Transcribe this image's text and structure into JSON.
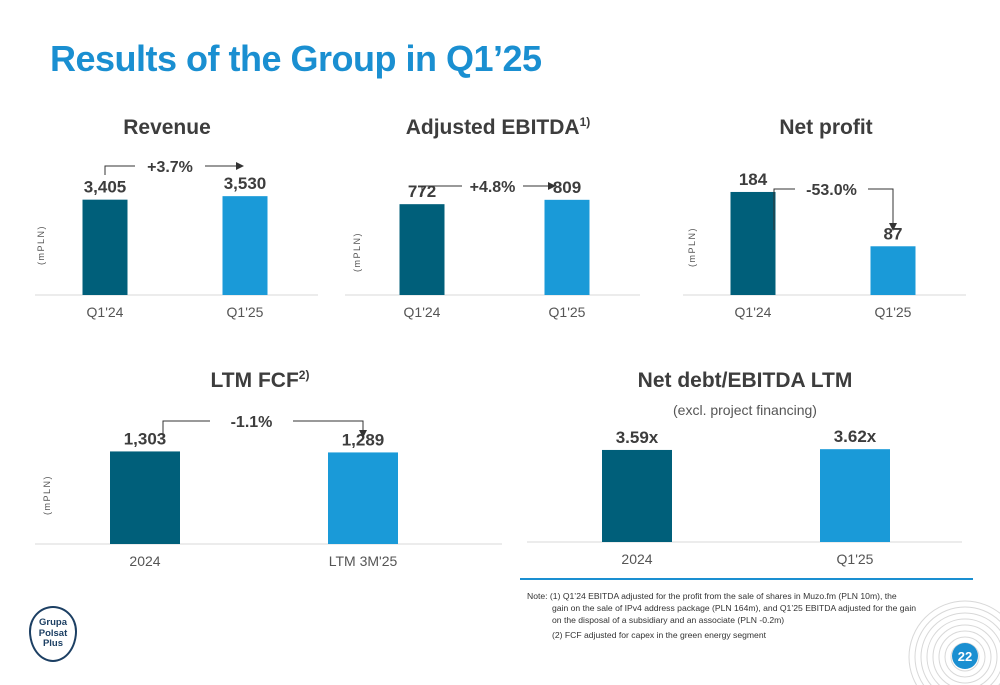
{
  "title": "Results of the Group in Q1’25",
  "unit_label": "(mPLN)",
  "colors": {
    "prior": "#005f7a",
    "current": "#1a9ad8",
    "accent": "#1a8fd1"
  },
  "chart_data": [
    {
      "type": "bar",
      "title": "Revenue",
      "superscript": "",
      "categories": [
        "Q1'24",
        "Q1'25"
      ],
      "values": [
        3405,
        3530
      ],
      "value_labels": [
        "3,405",
        "3,530"
      ],
      "change": "+3.7%",
      "ylim": [
        0,
        5000
      ]
    },
    {
      "type": "bar",
      "title": "Adjusted EBITDA",
      "superscript": "1)",
      "categories": [
        "Q1'24",
        "Q1'25"
      ],
      "values": [
        772,
        809
      ],
      "value_labels": [
        "772",
        "809"
      ],
      "change": "+4.8%",
      "ylim": [
        0,
        1190
      ]
    },
    {
      "type": "bar",
      "title": "Net profit",
      "superscript": "",
      "categories": [
        "Q1'24",
        "Q1'25"
      ],
      "values": [
        184,
        87
      ],
      "value_labels": [
        "184",
        "87"
      ],
      "change": "-53.0%",
      "ylim": [
        0,
        250
      ]
    },
    {
      "type": "bar",
      "title": "LTM FCF",
      "superscript": "2)",
      "categories": [
        "2024",
        "LTM 3M'25"
      ],
      "values": [
        1303,
        1289
      ],
      "value_labels": [
        "1,303",
        "1,289"
      ],
      "change": "-1.1%",
      "ylim": [
        0,
        1830
      ]
    },
    {
      "type": "bar",
      "title": "Net debt/EBITDA LTM",
      "superscript": "",
      "subtitle": "(excl. project financing)",
      "categories": [
        "2024",
        "Q1'25"
      ],
      "values": [
        3.59,
        3.62
      ],
      "value_labels": [
        "3.59x",
        "3.62x"
      ],
      "change": "",
      "ylim": [
        0,
        5.07
      ]
    }
  ],
  "notes": {
    "line1": "Note: (1) Q1’24 EBITDA adjusted for the profit from the sale of shares in Muzo.fm (PLN 10m), the",
    "line2": "gain on the sale of IPv4 address package (PLN 164m), and Q1’25 EBITDA adjusted for the gain",
    "line3": "on the disposal of a subsidiary and an associate (PLN -0.2m)",
    "line4": "(2) FCF adjusted for capex in the green energy segment"
  },
  "logo_text": "Grupa\nPolsat\nPlus",
  "page_number": "22"
}
